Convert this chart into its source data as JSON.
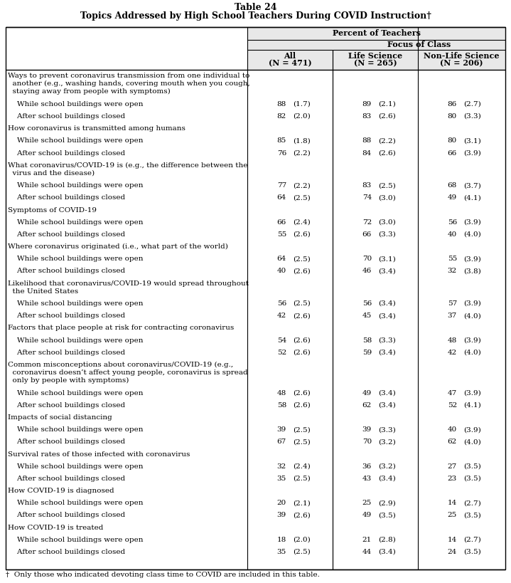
{
  "title_line1": "Table 24",
  "title_line2": "Topics Addressed by High School Teachers During COVID Instruction†",
  "footnote": "†  Only those who indicated devoting class time to COVID are included in this table.",
  "rows": [
    {
      "label": "Ways to prevent coronavirus transmission from one individual to\n  another (e.g., washing hands, covering mouth when you cough,\n  staying away from people with symptoms)",
      "all": "",
      "all_se": "",
      "life": "",
      "life_se": "",
      "nonlife": "",
      "nonlife_se": "",
      "is_header": true,
      "nlines": 3
    },
    {
      "label": "    While school buildings were open",
      "all": "88",
      "all_se": "(1.7)",
      "life": "89",
      "life_se": "(2.1)",
      "nonlife": "86",
      "nonlife_se": "(2.7)",
      "is_header": false,
      "nlines": 1
    },
    {
      "label": "    After school buildings closed",
      "all": "82",
      "all_se": "(2.0)",
      "life": "83",
      "life_se": "(2.6)",
      "nonlife": "80",
      "nonlife_se": "(3.3)",
      "is_header": false,
      "nlines": 1
    },
    {
      "label": "How coronavirus is transmitted among humans",
      "all": "",
      "all_se": "",
      "life": "",
      "life_se": "",
      "nonlife": "",
      "nonlife_se": "",
      "is_header": true,
      "nlines": 1
    },
    {
      "label": "    While school buildings were open",
      "all": "85",
      "all_se": "(1.8)",
      "life": "88",
      "life_se": "(2.2)",
      "nonlife": "80",
      "nonlife_se": "(3.1)",
      "is_header": false,
      "nlines": 1
    },
    {
      "label": "    After school buildings closed",
      "all": "76",
      "all_se": "(2.2)",
      "life": "84",
      "life_se": "(2.6)",
      "nonlife": "66",
      "nonlife_se": "(3.9)",
      "is_header": false,
      "nlines": 1
    },
    {
      "label": "What coronavirus/COVID-19 is (e.g., the difference between the\n  virus and the disease)",
      "all": "",
      "all_se": "",
      "life": "",
      "life_se": "",
      "nonlife": "",
      "nonlife_se": "",
      "is_header": true,
      "nlines": 2
    },
    {
      "label": "    While school buildings were open",
      "all": "77",
      "all_se": "(2.2)",
      "life": "83",
      "life_se": "(2.5)",
      "nonlife": "68",
      "nonlife_se": "(3.7)",
      "is_header": false,
      "nlines": 1
    },
    {
      "label": "    After school buildings closed",
      "all": "64",
      "all_se": "(2.5)",
      "life": "74",
      "life_se": "(3.0)",
      "nonlife": "49",
      "nonlife_se": "(4.1)",
      "is_header": false,
      "nlines": 1
    },
    {
      "label": "Symptoms of COVID-19",
      "all": "",
      "all_se": "",
      "life": "",
      "life_se": "",
      "nonlife": "",
      "nonlife_se": "",
      "is_header": true,
      "nlines": 1
    },
    {
      "label": "    While school buildings were open",
      "all": "66",
      "all_se": "(2.4)",
      "life": "72",
      "life_se": "(3.0)",
      "nonlife": "56",
      "nonlife_se": "(3.9)",
      "is_header": false,
      "nlines": 1
    },
    {
      "label": "    After school buildings closed",
      "all": "55",
      "all_se": "(2.6)",
      "life": "66",
      "life_se": "(3.3)",
      "nonlife": "40",
      "nonlife_se": "(4.0)",
      "is_header": false,
      "nlines": 1
    },
    {
      "label": "Where coronavirus originated (i.e., what part of the world)",
      "all": "",
      "all_se": "",
      "life": "",
      "life_se": "",
      "nonlife": "",
      "nonlife_se": "",
      "is_header": true,
      "nlines": 1
    },
    {
      "label": "    While school buildings were open",
      "all": "64",
      "all_se": "(2.5)",
      "life": "70",
      "life_se": "(3.1)",
      "nonlife": "55",
      "nonlife_se": "(3.9)",
      "is_header": false,
      "nlines": 1
    },
    {
      "label": "    After school buildings closed",
      "all": "40",
      "all_se": "(2.6)",
      "life": "46",
      "life_se": "(3.4)",
      "nonlife": "32",
      "nonlife_se": "(3.8)",
      "is_header": false,
      "nlines": 1
    },
    {
      "label": "Likelihood that coronavirus/COVID-19 would spread throughout\n  the United States",
      "all": "",
      "all_se": "",
      "life": "",
      "life_se": "",
      "nonlife": "",
      "nonlife_se": "",
      "is_header": true,
      "nlines": 2
    },
    {
      "label": "    While school buildings were open",
      "all": "56",
      "all_se": "(2.5)",
      "life": "56",
      "life_se": "(3.4)",
      "nonlife": "57",
      "nonlife_se": "(3.9)",
      "is_header": false,
      "nlines": 1
    },
    {
      "label": "    After school buildings closed",
      "all": "42",
      "all_se": "(2.6)",
      "life": "45",
      "life_se": "(3.4)",
      "nonlife": "37",
      "nonlife_se": "(4.0)",
      "is_header": false,
      "nlines": 1
    },
    {
      "label": "Factors that place people at risk for contracting coronavirus",
      "all": "",
      "all_se": "",
      "life": "",
      "life_se": "",
      "nonlife": "",
      "nonlife_se": "",
      "is_header": true,
      "nlines": 1
    },
    {
      "label": "    While school buildings were open",
      "all": "54",
      "all_se": "(2.6)",
      "life": "58",
      "life_se": "(3.3)",
      "nonlife": "48",
      "nonlife_se": "(3.9)",
      "is_header": false,
      "nlines": 1
    },
    {
      "label": "    After school buildings closed",
      "all": "52",
      "all_se": "(2.6)",
      "life": "59",
      "life_se": "(3.4)",
      "nonlife": "42",
      "nonlife_se": "(4.0)",
      "is_header": false,
      "nlines": 1
    },
    {
      "label": "Common misconceptions about coronavirus/COVID-19 (e.g.,\n  coronavirus doesn’t affect young people, coronavirus is spread\n  only by people with symptoms)",
      "all": "",
      "all_se": "",
      "life": "",
      "life_se": "",
      "nonlife": "",
      "nonlife_se": "",
      "is_header": true,
      "nlines": 3
    },
    {
      "label": "    While school buildings were open",
      "all": "48",
      "all_se": "(2.6)",
      "life": "49",
      "life_se": "(3.4)",
      "nonlife": "47",
      "nonlife_se": "(3.9)",
      "is_header": false,
      "nlines": 1
    },
    {
      "label": "    After school buildings closed",
      "all": "58",
      "all_se": "(2.6)",
      "life": "62",
      "life_se": "(3.4)",
      "nonlife": "52",
      "nonlife_se": "(4.1)",
      "is_header": false,
      "nlines": 1
    },
    {
      "label": "Impacts of social distancing",
      "all": "",
      "all_se": "",
      "life": "",
      "life_se": "",
      "nonlife": "",
      "nonlife_se": "",
      "is_header": true,
      "nlines": 1
    },
    {
      "label": "    While school buildings were open",
      "all": "39",
      "all_se": "(2.5)",
      "life": "39",
      "life_se": "(3.3)",
      "nonlife": "40",
      "nonlife_se": "(3.9)",
      "is_header": false,
      "nlines": 1
    },
    {
      "label": "    After school buildings closed",
      "all": "67",
      "all_se": "(2.5)",
      "life": "70",
      "life_se": "(3.2)",
      "nonlife": "62",
      "nonlife_se": "(4.0)",
      "is_header": false,
      "nlines": 1
    },
    {
      "label": "Survival rates of those infected with coronavirus",
      "all": "",
      "all_se": "",
      "life": "",
      "life_se": "",
      "nonlife": "",
      "nonlife_se": "",
      "is_header": true,
      "nlines": 1
    },
    {
      "label": "    While school buildings were open",
      "all": "32",
      "all_se": "(2.4)",
      "life": "36",
      "life_se": "(3.2)",
      "nonlife": "27",
      "nonlife_se": "(3.5)",
      "is_header": false,
      "nlines": 1
    },
    {
      "label": "    After school buildings closed",
      "all": "35",
      "all_se": "(2.5)",
      "life": "43",
      "life_se": "(3.4)",
      "nonlife": "23",
      "nonlife_se": "(3.5)",
      "is_header": false,
      "nlines": 1
    },
    {
      "label": "How COVID-19 is diagnosed",
      "all": "",
      "all_se": "",
      "life": "",
      "life_se": "",
      "nonlife": "",
      "nonlife_se": "",
      "is_header": true,
      "nlines": 1
    },
    {
      "label": "    While school buildings were open",
      "all": "20",
      "all_se": "(2.1)",
      "life": "25",
      "life_se": "(2.9)",
      "nonlife": "14",
      "nonlife_se": "(2.7)",
      "is_header": false,
      "nlines": 1
    },
    {
      "label": "    After school buildings closed",
      "all": "39",
      "all_se": "(2.6)",
      "life": "49",
      "life_se": "(3.5)",
      "nonlife": "25",
      "nonlife_se": "(3.5)",
      "is_header": false,
      "nlines": 1
    },
    {
      "label": "How COVID-19 is treated",
      "all": "",
      "all_se": "",
      "life": "",
      "life_se": "",
      "nonlife": "",
      "nonlife_se": "",
      "is_header": true,
      "nlines": 1
    },
    {
      "label": "    While school buildings were open",
      "all": "18",
      "all_se": "(2.0)",
      "life": "21",
      "life_se": "(2.8)",
      "nonlife": "14",
      "nonlife_se": "(2.7)",
      "is_header": false,
      "nlines": 1
    },
    {
      "label": "    After school buildings closed",
      "all": "35",
      "all_se": "(2.5)",
      "life": "44",
      "life_se": "(3.4)",
      "nonlife": "24",
      "nonlife_se": "(3.5)",
      "is_header": false,
      "nlines": 1
    }
  ]
}
